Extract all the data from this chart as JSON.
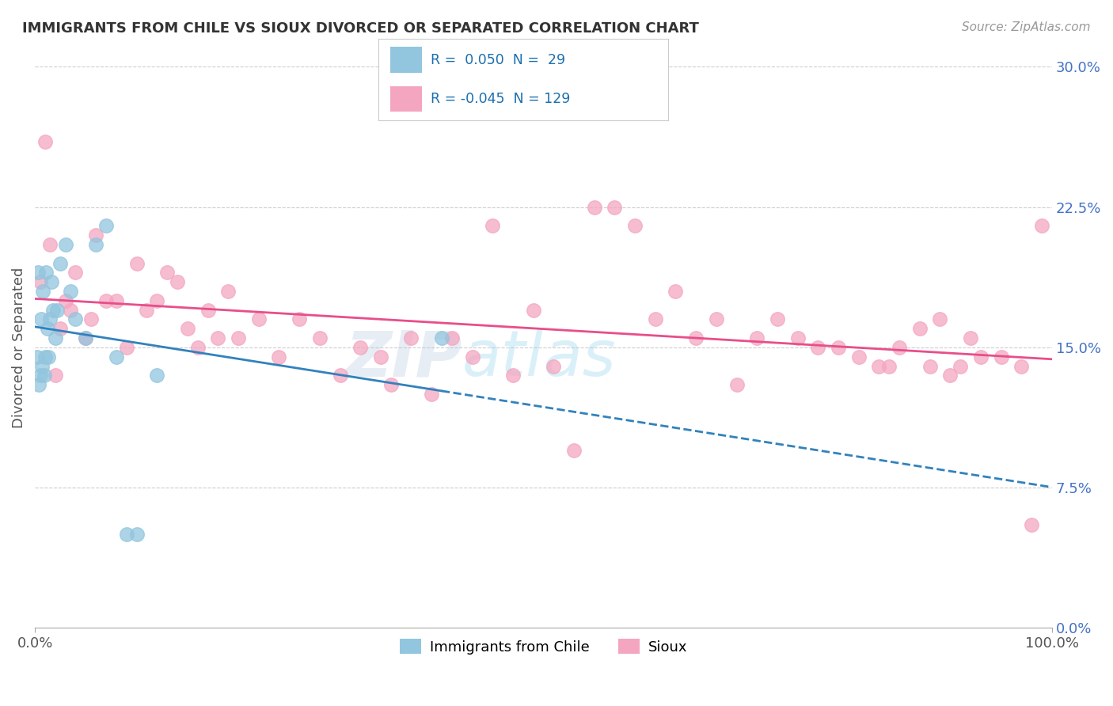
{
  "title": "IMMIGRANTS FROM CHILE VS SIOUX DIVORCED OR SEPARATED CORRELATION CHART",
  "source": "Source: ZipAtlas.com",
  "ylabel": "Divorced or Separated",
  "watermark": "ZIPatlas",
  "legend_blue_r": "0.050",
  "legend_blue_n": "29",
  "legend_pink_r": "-0.045",
  "legend_pink_n": "129",
  "blue_color": "#92c5de",
  "pink_color": "#f4a6c0",
  "blue_line_color": "#3182bd",
  "pink_line_color": "#e84e8a",
  "xmin": 0.0,
  "xmax": 100.0,
  "ymin": 0.0,
  "ymax": 30.0,
  "yticks": [
    0.0,
    7.5,
    15.0,
    22.5,
    30.0
  ],
  "blue_x": [
    0.2,
    0.3,
    0.4,
    0.5,
    0.6,
    0.7,
    0.8,
    0.9,
    1.0,
    1.1,
    1.2,
    1.3,
    1.5,
    1.6,
    1.8,
    2.0,
    2.2,
    2.5,
    3.0,
    3.5,
    4.0,
    5.0,
    6.0,
    7.0,
    8.0,
    9.0,
    10.0,
    12.0,
    40.0
  ],
  "blue_y": [
    14.5,
    19.0,
    13.0,
    13.5,
    16.5,
    14.0,
    18.0,
    13.5,
    14.5,
    19.0,
    16.0,
    14.5,
    16.5,
    18.5,
    17.0,
    15.5,
    17.0,
    19.5,
    20.5,
    18.0,
    16.5,
    15.5,
    20.5,
    21.5,
    14.5,
    5.0,
    5.0,
    13.5,
    15.5
  ],
  "pink_x": [
    0.5,
    1.0,
    1.5,
    2.0,
    2.5,
    3.0,
    3.5,
    4.0,
    5.0,
    5.5,
    6.0,
    7.0,
    8.0,
    9.0,
    10.0,
    11.0,
    12.0,
    13.0,
    14.0,
    15.0,
    16.0,
    17.0,
    18.0,
    19.0,
    20.0,
    22.0,
    24.0,
    26.0,
    28.0,
    30.0,
    32.0,
    34.0,
    35.0,
    37.0,
    39.0,
    41.0,
    43.0,
    45.0,
    47.0,
    49.0,
    51.0,
    53.0,
    55.0,
    57.0,
    59.0,
    61.0,
    63.0,
    65.0,
    67.0,
    69.0,
    71.0,
    73.0,
    75.0,
    77.0,
    79.0,
    81.0,
    83.0,
    84.0,
    85.0,
    87.0,
    88.0,
    89.0,
    90.0,
    91.0,
    92.0,
    93.0,
    95.0,
    97.0,
    98.0,
    99.0
  ],
  "pink_y": [
    18.5,
    26.0,
    20.5,
    13.5,
    16.0,
    17.5,
    17.0,
    19.0,
    15.5,
    16.5,
    21.0,
    17.5,
    17.5,
    15.0,
    19.5,
    17.0,
    17.5,
    19.0,
    18.5,
    16.0,
    15.0,
    17.0,
    15.5,
    18.0,
    15.5,
    16.5,
    14.5,
    16.5,
    15.5,
    13.5,
    15.0,
    14.5,
    13.0,
    15.5,
    12.5,
    15.5,
    14.5,
    21.5,
    13.5,
    17.0,
    14.0,
    9.5,
    22.5,
    22.5,
    21.5,
    16.5,
    18.0,
    15.5,
    16.5,
    13.0,
    15.5,
    16.5,
    15.5,
    15.0,
    15.0,
    14.5,
    14.0,
    14.0,
    15.0,
    16.0,
    14.0,
    16.5,
    13.5,
    14.0,
    15.5,
    14.5,
    14.5,
    14.0,
    5.5,
    21.5
  ]
}
